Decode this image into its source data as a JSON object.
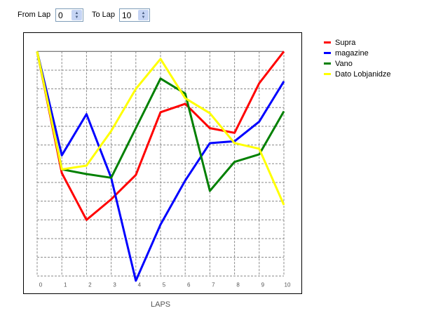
{
  "controls": {
    "from_label": "From Lap",
    "from_value": "0",
    "to_label": "To Lap",
    "to_value": "10"
  },
  "chart_data": {
    "type": "line",
    "xlabel": "LAPS",
    "ylabel": "",
    "x": [
      0,
      1,
      2,
      3,
      4,
      5,
      6,
      7,
      8,
      9,
      10
    ],
    "xlim": [
      0,
      10
    ],
    "ylim": [
      0,
      12
    ],
    "grid": true,
    "legend_position": "right",
    "series": [
      {
        "name": "Supra",
        "color": "#ff0000",
        "values": [
          12,
          5.5,
          3,
          4.1,
          5.4,
          8.75,
          9.2,
          7.9,
          7.65,
          10.3,
          12
        ]
      },
      {
        "name": "magazine",
        "color": "#0000ff",
        "values": [
          12,
          6.45,
          8.65,
          5.25,
          -0.25,
          2.75,
          5.1,
          7.1,
          7.2,
          8.25,
          10.4
        ]
      },
      {
        "name": "Vano",
        "color": "#008000",
        "values": [
          12,
          5.7,
          5.45,
          5.25,
          7.9,
          10.55,
          9.75,
          4.55,
          6.1,
          6.5,
          8.8
        ]
      },
      {
        "name": "Dato Lobjanidze",
        "color": "#ffff00",
        "values": [
          12,
          5.7,
          5.9,
          7.75,
          10,
          11.6,
          9.5,
          8.7,
          7.1,
          6.8,
          3.8
        ]
      }
    ]
  }
}
